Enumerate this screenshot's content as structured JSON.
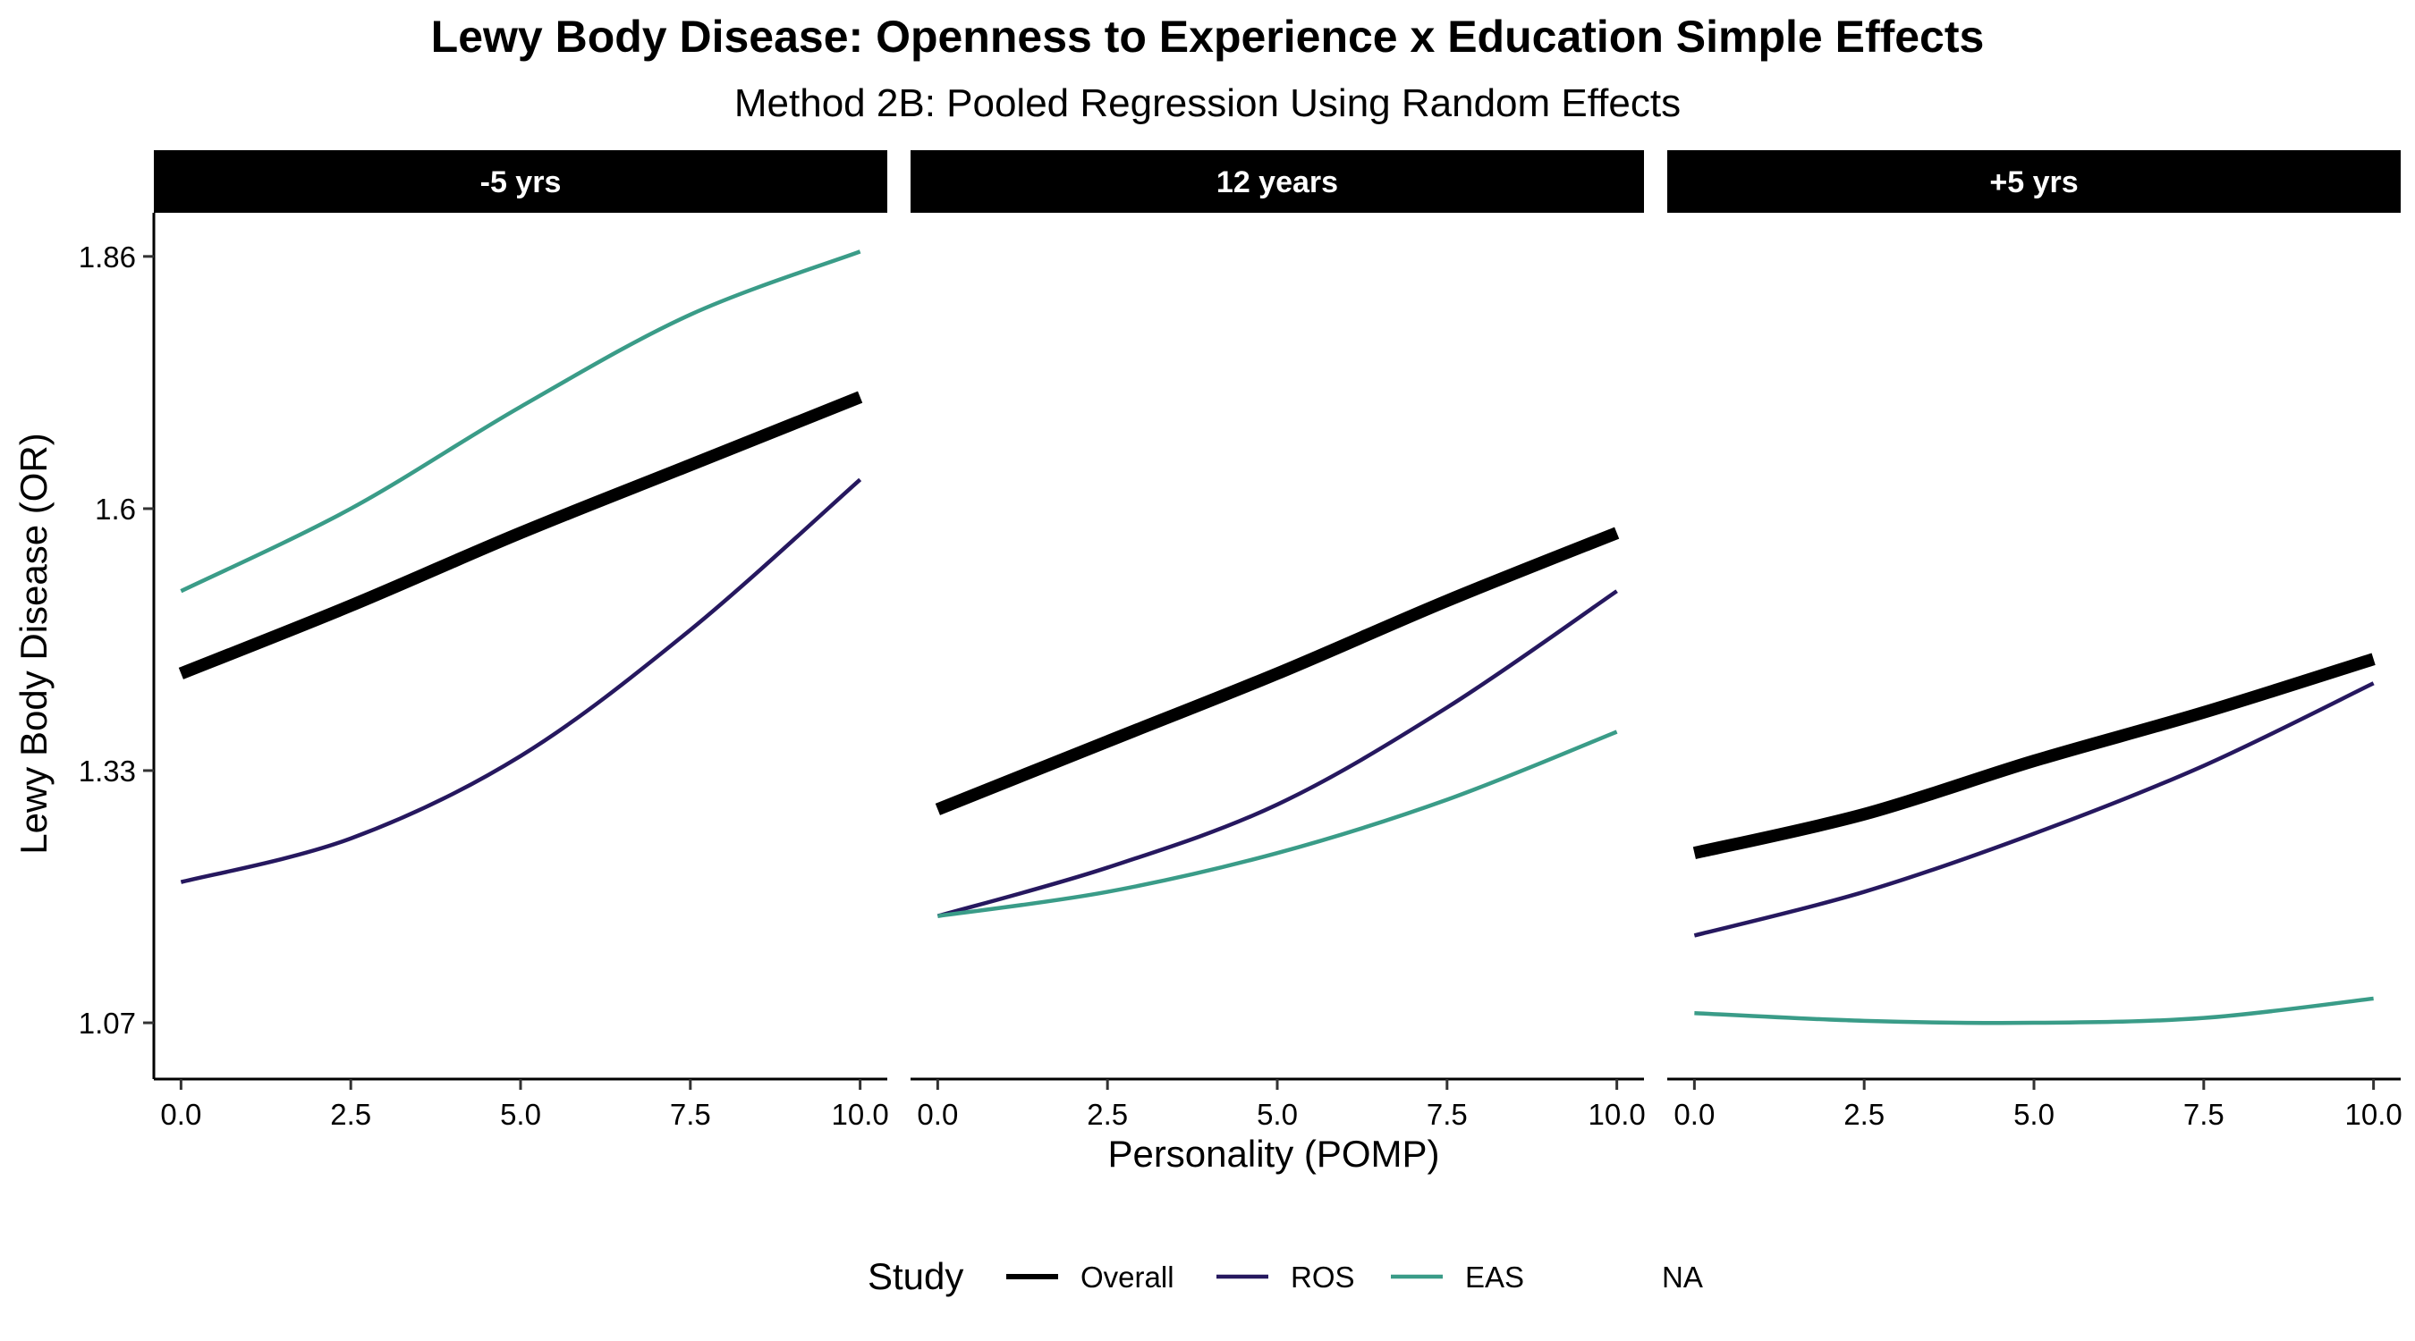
{
  "chart_data": {
    "type": "line",
    "title": "Lewy Body Disease: Openness to Experience x Education Simple Effects",
    "subtitle": "Method 2B: Pooled Regression Using Random Effects",
    "xlabel": "Personality (POMP)",
    "ylabel": "Lewy Body Disease (OR)",
    "xlim": [
      -0.4,
      10.4
    ],
    "ylim": [
      1.012,
      1.905
    ],
    "x_ticks": [
      0,
      2.5,
      5,
      7.5,
      10
    ],
    "x_tick_labels": [
      "0.0",
      "2.5",
      "5.0",
      "7.5",
      "10.0"
    ],
    "y_ticks": [
      1.07,
      1.33,
      1.6,
      1.86
    ],
    "y_tick_labels": [
      "1.07",
      "1.33",
      "1.6",
      "1.86"
    ],
    "grid": false,
    "legend": {
      "title": "Study",
      "position": "bottom",
      "entries": [
        {
          "name": "Overall",
          "color": "#000000"
        },
        {
          "name": "ROS",
          "color": "#26185f"
        },
        {
          "name": "EAS",
          "color": "#3a9c88"
        },
        {
          "name": "NA",
          "color": null
        }
      ]
    },
    "series_styles": {
      "Overall": {
        "color": "#000000",
        "width": 14
      },
      "ROS": {
        "color": "#26185f",
        "width": 4.5
      },
      "EAS": {
        "color": "#3a9c88",
        "width": 4.5
      }
    },
    "x": [
      0,
      2.5,
      5,
      7.5,
      10
    ],
    "panels": [
      {
        "label": "-5 yrs",
        "series": [
          {
            "name": "Overall",
            "values": [
              1.43,
              1.5,
              1.575,
              1.645,
              1.715
            ]
          },
          {
            "name": "ROS",
            "values": [
              1.215,
              1.26,
              1.345,
              1.475,
              1.63
            ]
          },
          {
            "name": "EAS",
            "values": [
              1.515,
              1.6,
              1.705,
              1.8,
              1.865
            ]
          }
        ]
      },
      {
        "label": "12 years",
        "series": [
          {
            "name": "Overall",
            "values": [
              1.29,
              1.36,
              1.43,
              1.505,
              1.575
            ]
          },
          {
            "name": "ROS",
            "values": [
              1.18,
              1.23,
              1.295,
              1.395,
              1.515
            ]
          },
          {
            "name": "EAS",
            "values": [
              1.18,
              1.205,
              1.245,
              1.3,
              1.37
            ]
          }
        ]
      },
      {
        "label": "+5 yrs",
        "series": [
          {
            "name": "Overall",
            "values": [
              1.245,
              1.285,
              1.34,
              1.39,
              1.445
            ]
          },
          {
            "name": "ROS",
            "values": [
              1.16,
              1.205,
              1.265,
              1.335,
              1.42
            ]
          },
          {
            "name": "EAS",
            "values": [
              1.08,
              1.072,
              1.07,
              1.075,
              1.095
            ]
          }
        ]
      }
    ]
  }
}
